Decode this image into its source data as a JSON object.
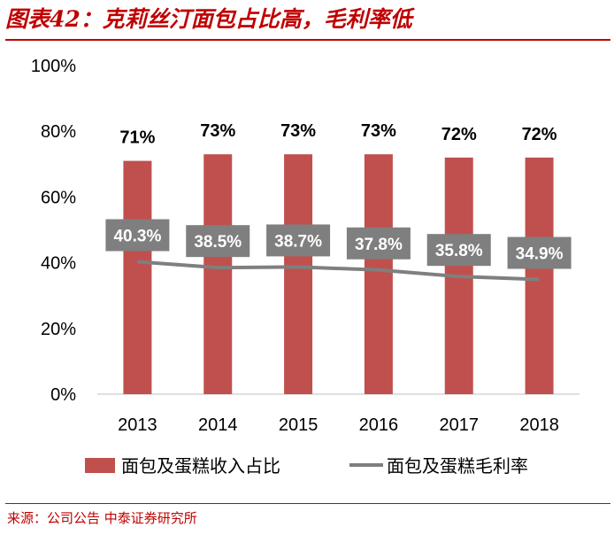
{
  "header": {
    "title": "图表42：克莉丝汀面包占比高，毛利率低"
  },
  "footer": {
    "source": "来源：公司公告 中泰证券研究所"
  },
  "chart_data": {
    "type": "bar+line",
    "categories": [
      "2013",
      "2014",
      "2015",
      "2016",
      "2017",
      "2018"
    ],
    "series": [
      {
        "name": "面包及蛋糕收入占比",
        "type": "bar",
        "color": "#c0504d",
        "values": [
          71,
          73,
          73,
          73,
          72,
          72
        ],
        "labels": [
          "71%",
          "73%",
          "73%",
          "73%",
          "72%",
          "72%"
        ]
      },
      {
        "name": "面包及蛋糕毛利率",
        "type": "line",
        "color": "#7f7f7f",
        "values": [
          40.3,
          38.5,
          38.7,
          37.8,
          35.8,
          34.9
        ],
        "labels": [
          "40.3%",
          "38.5%",
          "38.7%",
          "37.8%",
          "35.8%",
          "34.9%"
        ]
      }
    ],
    "yticks": [
      "0%",
      "20%",
      "40%",
      "60%",
      "80%",
      "100%"
    ],
    "ylim": [
      0,
      100
    ],
    "grid": false,
    "legend": "bottom"
  }
}
